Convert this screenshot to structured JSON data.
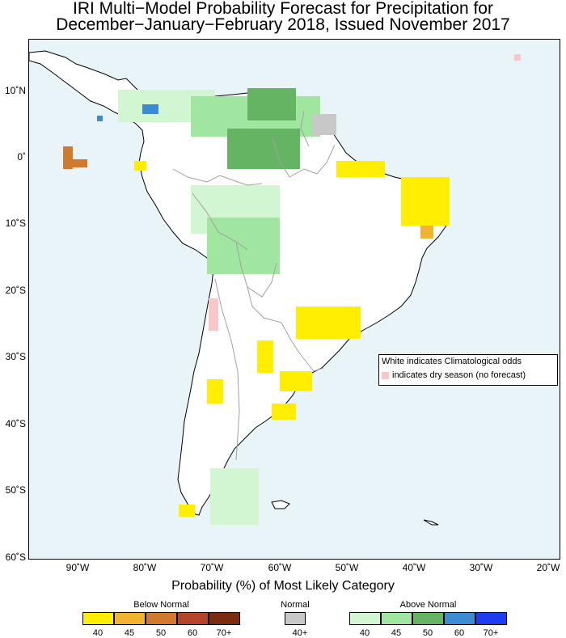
{
  "title": {
    "line1": "IRI Multi−Model Probability Forecast for Precipitation for",
    "line2": "December−January−February 2018, Issued November 2017"
  },
  "map": {
    "region": "South America",
    "lat_labels": [
      "10˚N",
      "0˚",
      "10˚S",
      "20˚S",
      "30˚S",
      "40˚S",
      "50˚S",
      "60˚S"
    ],
    "lon_labels": [
      "90˚W",
      "80˚W",
      "70˚W",
      "60˚W",
      "50˚W",
      "40˚W",
      "30˚W",
      "20˚W"
    ],
    "lat_range": [
      -60,
      17
    ],
    "lon_range": [
      -98,
      -19
    ]
  },
  "legend_note": {
    "line1": "White indicates Climatological odds",
    "line2": "indicates dry season (no forecast)",
    "dry_color": "#f8c8c8"
  },
  "probability_title": "Probability (%) of Most Likely Category",
  "categories": {
    "below": {
      "label": "Below Normal",
      "colors": [
        "#ffee00",
        "#f0b432",
        "#d07a30",
        "#b4442a",
        "#7a2c10"
      ],
      "ticks": [
        "40",
        "45",
        "50",
        "60",
        "70+"
      ]
    },
    "normal": {
      "label": "Normal",
      "colors": [
        "#c8c8c8"
      ],
      "ticks": [
        "40+"
      ]
    },
    "above": {
      "label": "Above Normal",
      "colors": [
        "#d2f5d2",
        "#a0e6a0",
        "#64b464",
        "#3c8cd2",
        "#1e3cf0"
      ],
      "ticks": [
        "40",
        "45",
        "50",
        "60",
        "70+"
      ]
    }
  },
  "colors": {
    "ocean": "#e9f4f8",
    "land": "#ffffff",
    "coast": "#000000",
    "border": "#a0a0a0"
  }
}
